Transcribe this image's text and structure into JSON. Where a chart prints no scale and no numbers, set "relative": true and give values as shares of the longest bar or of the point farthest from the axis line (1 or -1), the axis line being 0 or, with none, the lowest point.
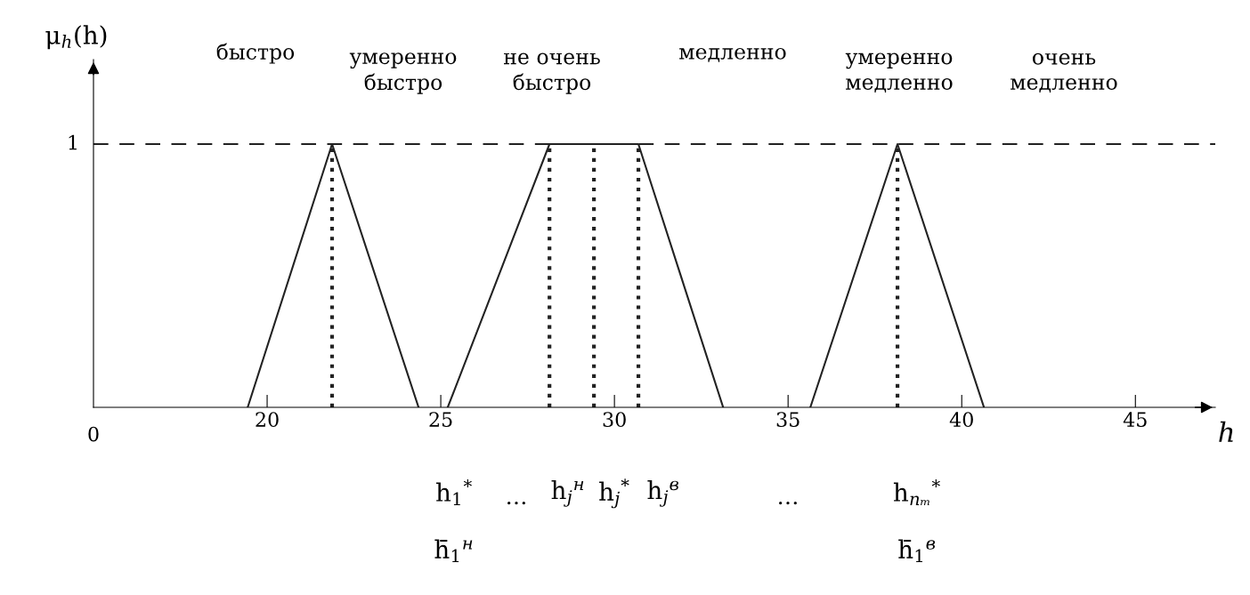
{
  "chart_data": {
    "type": "line",
    "xlabel": "h",
    "ylabel": "μ$_{h}$(h)",
    "xlim": [
      15,
      47.3
    ],
    "relative": true,
    "xticks": [
      20,
      25,
      30,
      35,
      40,
      45
    ],
    "line_style": "solid",
    "series": [
      {
        "color": "#222222",
        "x": [
          19.44,
          21.87,
          24.36
        ],
        "values": [
          0,
          1,
          0
        ]
      },
      {
        "color": "#222222",
        "x": [
          25.2,
          28.13,
          30.69,
          33.13
        ],
        "values": [
          0,
          1,
          1,
          0
        ]
      },
      {
        "color": "#222222",
        "x": [
          35.64,
          38.15,
          40.64
        ],
        "values": [
          0,
          1,
          0
        ]
      },
      {
        "color": "#222222",
        "line_style": "dotted",
        "x": [
          21.87,
          21.87
        ],
        "values": [
          0,
          1
        ]
      },
      {
        "color": "#222222",
        "line_style": "dotted",
        "x": [
          28.13,
          28.13
        ],
        "values": [
          0,
          1
        ]
      },
      {
        "color": "#222222",
        "line_style": "dotted",
        "x": [
          29.41,
          29.41
        ],
        "values": [
          0,
          1
        ]
      },
      {
        "color": "#222222",
        "line_style": "dotted",
        "x": [
          30.69,
          30.69
        ],
        "values": [
          0,
          1
        ]
      },
      {
        "color": "#222222",
        "line_style": "dotted",
        "x": [
          38.15,
          38.15
        ],
        "values": [
          0,
          1
        ]
      }
    ],
    "ref_lines": [
      {
        "axis": "y",
        "value": 1,
        "line_style": "dashed",
        "color": "#222222"
      }
    ],
    "annotations": [
      "1",
      "0",
      "быстро",
      "умеренно\nбыстро",
      "не очень\nбыстро",
      "медленно",
      "умеренно\nмедленно",
      "очень\nмедленно",
      "h$_{1}$$^{*}$",
      "…",
      "h$_{j}$$^{н}$",
      "h$_{j}$$^{*}$",
      "h$_{j}$$^{в}$",
      "…",
      "h$_{nₘ}$$^{*}$",
      "h̄$_{1}$$^{н}$",
      "h̄$_{1}$$^{в}$"
    ]
  }
}
